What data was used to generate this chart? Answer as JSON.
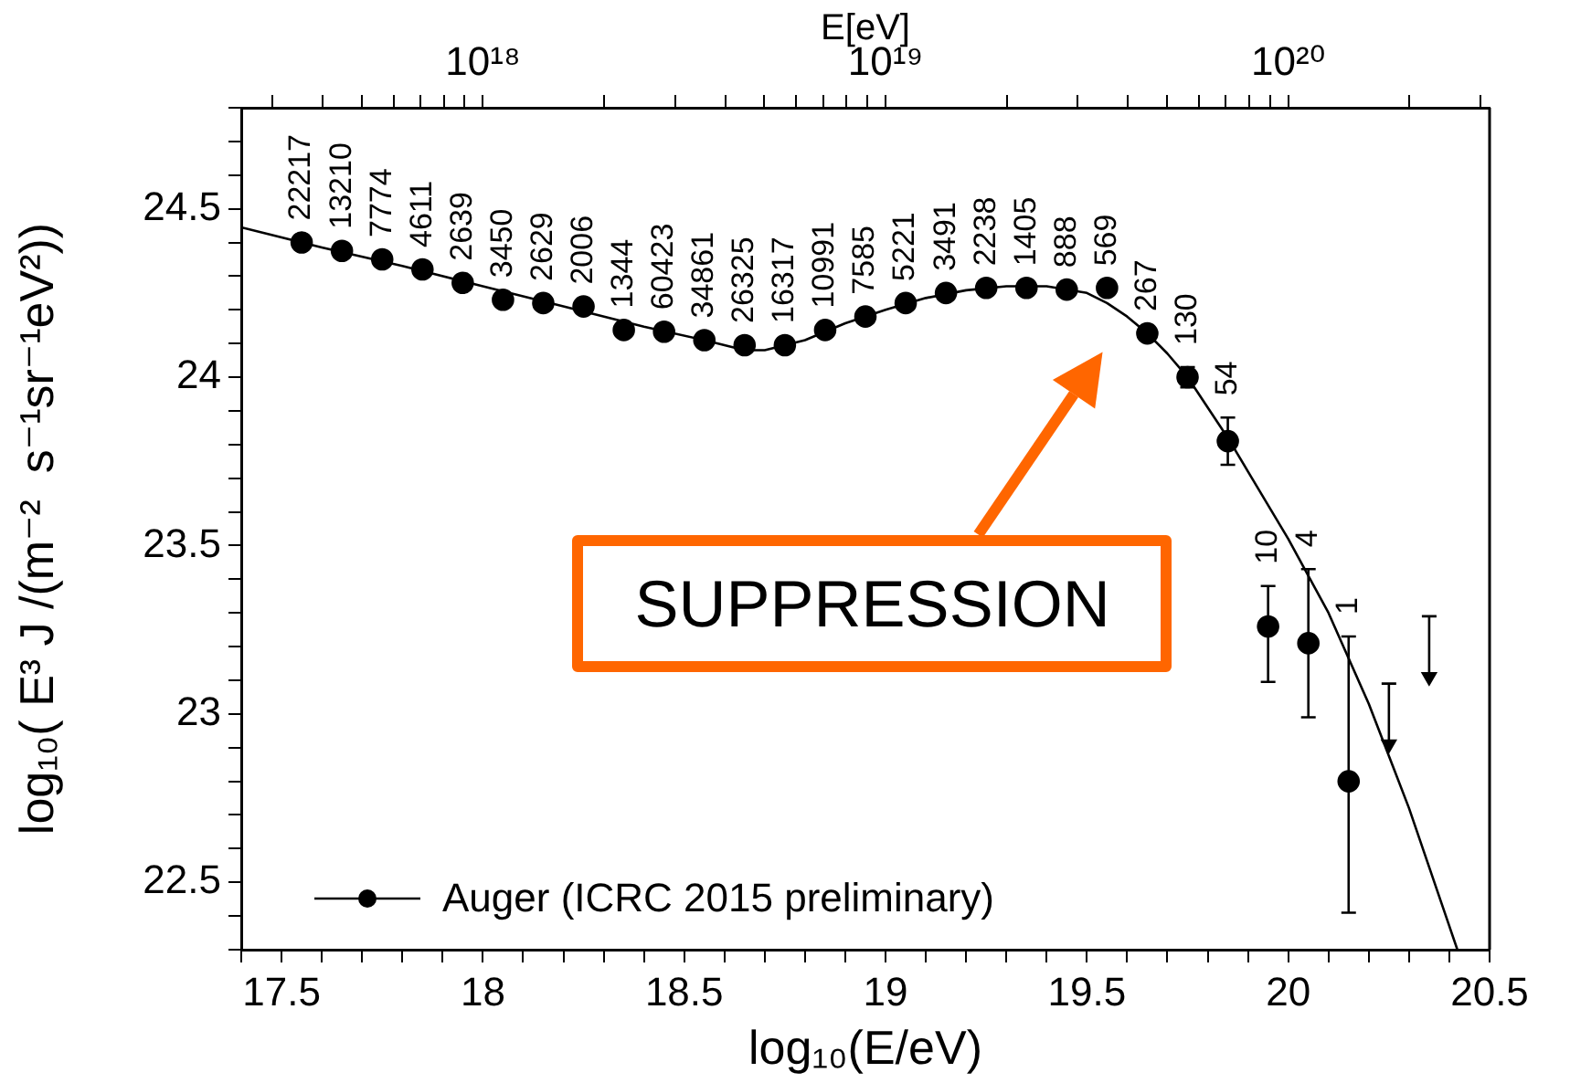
{
  "chart_data": {
    "type": "scatter",
    "xlabel": "log₁₀(E/eV)",
    "ylabel": "log₁₀( E³ J /(m⁻²  s⁻¹sr⁻¹eV²))",
    "x2label": "E[eV]",
    "xlim": [
      17.4,
      20.5
    ],
    "x2lim": [
      2.512e+17,
      3.162e+20
    ],
    "log": "x2",
    "ylim": [
      22.3,
      24.8
    ],
    "xticks": [
      {
        "value": 17.4,
        "label": null
      },
      17.5,
      {
        "value": 17.6,
        "label": null
      },
      {
        "value": 17.7,
        "label": null
      },
      {
        "value": 17.8,
        "label": null
      },
      {
        "value": 17.9,
        "label": null
      },
      18,
      {
        "value": 18.1,
        "label": null
      },
      {
        "value": 18.2,
        "label": null
      },
      {
        "value": 18.3,
        "label": null
      },
      {
        "value": 18.4,
        "label": null
      },
      18.5,
      {
        "value": 18.6,
        "label": null
      },
      {
        "value": 18.7,
        "label": null
      },
      {
        "value": 18.8,
        "label": null
      },
      {
        "value": 18.9,
        "label": null
      },
      19,
      {
        "value": 19.1,
        "label": null
      },
      {
        "value": 19.2,
        "label": null
      },
      {
        "value": 19.3,
        "label": null
      },
      {
        "value": 19.4,
        "label": null
      },
      19.5,
      {
        "value": 19.6,
        "label": null
      },
      {
        "value": 19.7,
        "label": null
      },
      {
        "value": 19.8,
        "label": null
      },
      {
        "value": 19.9,
        "label": null
      },
      20,
      {
        "value": 20.1,
        "label": null
      },
      {
        "value": 20.2,
        "label": null
      },
      {
        "value": 20.3,
        "label": null
      },
      {
        "value": 20.4,
        "label": null
      },
      20.5
    ],
    "x2ticks": [
      {
        "value": 3e+17,
        "label": null
      },
      {
        "value": 4e+17,
        "label": null
      },
      {
        "value": 5e+17,
        "label": null
      },
      {
        "value": 6e+17,
        "label": null
      },
      {
        "value": 7e+17,
        "label": null
      },
      {
        "value": 8e+17,
        "label": null
      },
      {
        "value": 9e+17,
        "label": null
      },
      {
        "value": 1e+18,
        "label": "10¹⁸"
      },
      {
        "value": 2e+18,
        "label": null
      },
      {
        "value": 3e+18,
        "label": null
      },
      {
        "value": 4e+18,
        "label": null
      },
      {
        "value": 5e+18,
        "label": null
      },
      {
        "value": 6e+18,
        "label": null
      },
      {
        "value": 7e+18,
        "label": null
      },
      {
        "value": 8e+18,
        "label": null
      },
      {
        "value": 9e+18,
        "label": null
      },
      {
        "value": 1e+19,
        "label": "10¹⁹"
      },
      {
        "value": 2e+19,
        "label": null
      },
      {
        "value": 3e+19,
        "label": null
      },
      {
        "value": 4e+19,
        "label": null
      },
      {
        "value": 5e+19,
        "label": null
      },
      {
        "value": 6e+19,
        "label": null
      },
      {
        "value": 7e+19,
        "label": null
      },
      {
        "value": 8e+19,
        "label": null
      },
      {
        "value": 9e+19,
        "label": null
      },
      {
        "value": 1e+20,
        "label": "10²⁰"
      },
      {
        "value": 2e+20,
        "label": null
      },
      {
        "value": 3e+20,
        "label": null
      }
    ],
    "yticks": [
      {
        "value": 22.3,
        "label": null
      },
      {
        "value": 22.4,
        "label": null
      },
      22.5,
      {
        "value": 22.6,
        "label": null
      },
      {
        "value": 22.7,
        "label": null
      },
      {
        "value": 22.8,
        "label": null
      },
      {
        "value": 22.9,
        "label": null
      },
      23,
      {
        "value": 23.1,
        "label": null
      },
      {
        "value": 23.2,
        "label": null
      },
      {
        "value": 23.3,
        "label": null
      },
      {
        "value": 23.4,
        "label": null
      },
      23.5,
      {
        "value": 23.6,
        "label": null
      },
      {
        "value": 23.7,
        "label": null
      },
      {
        "value": 23.8,
        "label": null
      },
      {
        "value": 23.9,
        "label": null
      },
      24,
      {
        "value": 24.1,
        "label": null
      },
      {
        "value": 24.2,
        "label": null
      },
      {
        "value": 24.3,
        "label": null
      },
      {
        "value": 24.4,
        "label": null
      },
      24.5,
      {
        "value": 24.6,
        "label": null
      },
      {
        "value": 24.7,
        "label": null
      },
      {
        "value": 24.8,
        "label": null
      }
    ],
    "grid": false,
    "legend": "bottom left",
    "annotations": [
      "SUPPRESSION",
      {
        "text": "22217",
        "x": 17.55,
        "y": 24.4
      },
      {
        "text": "13210",
        "x": 17.65,
        "y": 24.375
      },
      {
        "text": "7774",
        "x": 17.75,
        "y": 24.35
      },
      {
        "text": "4611",
        "x": 17.85,
        "y": 24.32
      },
      {
        "text": "2639",
        "x": 17.95,
        "y": 24.28
      },
      {
        "text": "3450",
        "x": 18.05,
        "y": 24.23
      },
      {
        "text": "2629",
        "x": 18.15,
        "y": 24.22
      },
      {
        "text": "2006",
        "x": 18.25,
        "y": 24.21
      },
      {
        "text": "1344",
        "x": 18.35,
        "y": 24.14
      },
      {
        "text": "60423",
        "x": 18.45,
        "y": 24.135
      },
      {
        "text": "34861",
        "x": 18.55,
        "y": 24.11
      },
      {
        "text": "26325",
        "x": 18.65,
        "y": 24.095
      },
      {
        "text": "16317",
        "x": 18.75,
        "y": 24.095
      },
      {
        "text": "10991",
        "x": 18.85,
        "y": 24.14
      },
      {
        "text": "7585",
        "x": 18.95,
        "y": 24.18
      },
      {
        "text": "5221",
        "x": 19.05,
        "y": 24.22
      },
      {
        "text": "3491",
        "x": 19.15,
        "y": 24.25
      },
      {
        "text": "2238",
        "x": 19.25,
        "y": 24.265
      },
      {
        "text": "1405",
        "x": 19.35,
        "y": 24.265
      },
      {
        "text": "888",
        "x": 19.45,
        "y": 24.26
      },
      {
        "text": "569",
        "x": 19.55,
        "y": 24.265
      },
      {
        "text": "267",
        "x": 19.65,
        "y": 24.13
      },
      {
        "text": "130",
        "x": 19.75,
        "y": 24.03
      },
      {
        "text": "54",
        "x": 19.85,
        "y": 23.88
      },
      {
        "text": "10",
        "x": 19.95,
        "y": 23.38
      },
      {
        "text": "4",
        "x": 20.05,
        "y": 23.43
      },
      {
        "text": "1",
        "x": 20.15,
        "y": 23.23
      }
    ],
    "series": [
      {
        "name": "Auger (ICRC 2015 preliminary)",
        "color": "#000000",
        "marker": "circle",
        "x": [
          17.55,
          17.65,
          17.75,
          17.85,
          17.95,
          18.05,
          18.15,
          18.25,
          18.35,
          18.45,
          18.55,
          18.65,
          18.75,
          18.85,
          18.95,
          19.05,
          19.15,
          19.25,
          19.35,
          19.45,
          19.55,
          19.65,
          19.75,
          19.85,
          19.95,
          20.05,
          20.15
        ],
        "values": [
          24.4,
          24.375,
          24.35,
          24.32,
          24.28,
          24.23,
          24.22,
          24.21,
          24.14,
          24.135,
          24.11,
          24.095,
          24.095,
          24.14,
          24.18,
          24.22,
          24.25,
          24.265,
          24.265,
          24.26,
          24.265,
          24.13,
          24.0,
          23.81,
          23.26,
          23.21,
          22.8
        ],
        "errors": [
          null,
          null,
          null,
          null,
          null,
          null,
          null,
          null,
          null,
          null,
          null,
          null,
          null,
          null,
          null,
          null,
          null,
          null,
          null,
          null,
          null,
          null,
          0.03,
          0.07,
          [
            23.095,
            23.38
          ],
          [
            22.99,
            23.43
          ],
          [
            22.41,
            23.23
          ]
        ]
      },
      {
        "color": "#000000",
        "marker": "triangle",
        "x": [
          20.25,
          20.35
        ],
        "values": [
          22.91,
          23.11
        ],
        "errors": [
          [
            22.91,
            23.09
          ],
          [
            23.11,
            23.29
          ]
        ]
      },
      {
        "type": "line",
        "color": "#000000",
        "marker": "none",
        "x": [
          17.4,
          17.6,
          17.8,
          18.0,
          18.2,
          18.4,
          18.55,
          18.65,
          18.7,
          18.8,
          18.9,
          19.0,
          19.1,
          19.2,
          19.3,
          19.4,
          19.5,
          19.55,
          19.6,
          19.65,
          19.7,
          19.75,
          19.8,
          19.85,
          19.9,
          20.0,
          20.1,
          20.2,
          20.3,
          20.4,
          20.42
        ],
        "values": [
          24.445,
          24.385,
          24.33,
          24.27,
          24.21,
          24.15,
          24.11,
          24.08,
          24.08,
          24.11,
          24.16,
          24.2,
          24.235,
          24.258,
          24.27,
          24.27,
          24.25,
          24.22,
          24.18,
          24.13,
          24.07,
          24.0,
          23.91,
          23.82,
          23.72,
          23.52,
          23.3,
          23.03,
          22.72,
          22.37,
          22.3
        ]
      }
    ]
  }
}
